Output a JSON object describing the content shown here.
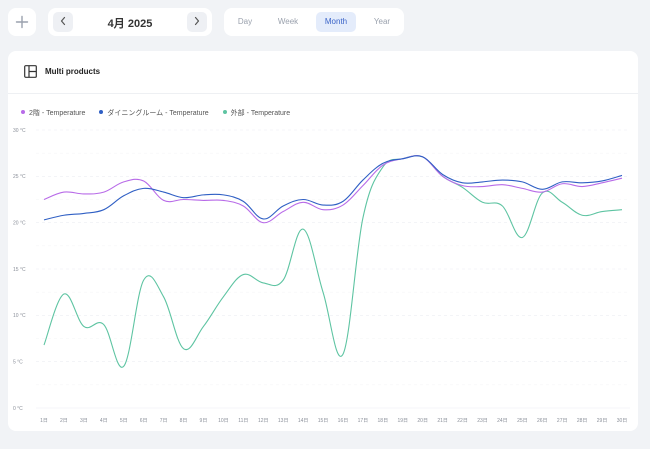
{
  "toolbar": {
    "add_icon": "plus-icon",
    "date_label": "4月 2025",
    "prev_icon": "chevron-left-icon",
    "next_icon": "chevron-right-icon",
    "range_tabs": [
      {
        "label": "Day",
        "active": false
      },
      {
        "label": "Week",
        "active": false
      },
      {
        "label": "Month",
        "active": true
      },
      {
        "label": "Year",
        "active": false
      }
    ]
  },
  "card": {
    "icon": "dashboard-layout-icon",
    "title": "Multi products"
  },
  "chart_data": {
    "type": "line",
    "title": "",
    "xlabel": "",
    "ylabel": "",
    "ylim": [
      0,
      30
    ],
    "y_ticks": [
      "0 °C",
      "5 °C",
      "10 °C",
      "15 °C",
      "20 °C",
      "25 °C",
      "30 °C"
    ],
    "y_tick_values": [
      0,
      5,
      10,
      15,
      20,
      25,
      30
    ],
    "categories": [
      "1日",
      "2日",
      "3日",
      "4日",
      "5日",
      "6日",
      "7日",
      "8日",
      "9日",
      "10日",
      "11日",
      "12日",
      "13日",
      "14日",
      "15日",
      "16日",
      "17日",
      "18日",
      "19日",
      "20日",
      "21日",
      "22日",
      "23日",
      "24日",
      "25日",
      "26日",
      "27日",
      "28日",
      "29日",
      "30日"
    ],
    "grid": true,
    "legend_position": "top-left",
    "series": [
      {
        "name": "2階 - Temperature",
        "color": "#b86be8",
        "values": [
          22.5,
          23.3,
          23.1,
          23.3,
          24.4,
          24.5,
          22.4,
          22.5,
          22.4,
          22.4,
          21.8,
          20.0,
          21.2,
          22.2,
          21.4,
          21.9,
          24.0,
          26.2,
          26.9,
          27.1,
          25.0,
          24.0,
          23.9,
          24.1,
          23.7,
          23.3,
          24.2,
          23.9,
          24.3,
          24.8
        ]
      },
      {
        "name": "ダイニングルーム - Temperature",
        "color": "#2f5fc4",
        "values": [
          20.3,
          20.8,
          21.0,
          21.4,
          22.9,
          23.7,
          23.3,
          22.7,
          23.0,
          23.0,
          22.3,
          20.4,
          21.8,
          22.5,
          21.9,
          22.3,
          24.6,
          26.4,
          26.9,
          27.1,
          25.2,
          24.3,
          24.4,
          24.6,
          24.4,
          23.6,
          24.4,
          24.3,
          24.5,
          25.1
        ]
      },
      {
        "name": "外部 - Temperature",
        "color": "#5ec4a2",
        "values": [
          6.8,
          12.3,
          8.8,
          9.0,
          4.5,
          13.8,
          12.0,
          6.4,
          8.8,
          12.0,
          14.4,
          13.5,
          13.8,
          19.3,
          12.5,
          5.8,
          20.5,
          26.0,
          26.9,
          27.1,
          25.0,
          23.8,
          22.2,
          21.8,
          18.4,
          23.2,
          22.2,
          20.8,
          21.2,
          21.4
        ]
      }
    ]
  }
}
